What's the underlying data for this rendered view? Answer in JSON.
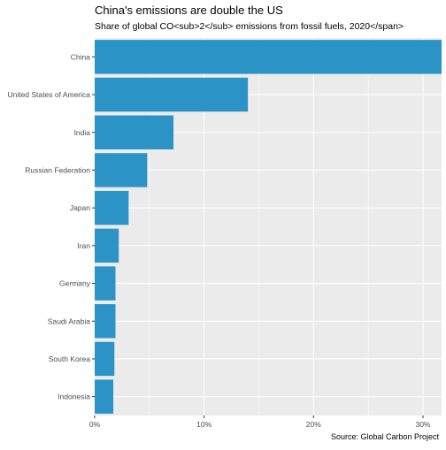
{
  "chart_data": {
    "type": "bar",
    "orientation": "horizontal",
    "title": "China's emissions are double the US",
    "subtitle": "Share of global CO<sub>2</sub> emissions from fossil fuels, 2020</span>",
    "caption": "Source: Global Carbon Project",
    "categories": [
      "China",
      "United States of America",
      "India",
      "Russian Federation",
      "Japan",
      "Iran",
      "Germany",
      "Saudi Arabia",
      "South Korea",
      "Indonesia"
    ],
    "values": [
      31.7,
      14.0,
      7.2,
      4.8,
      3.1,
      2.2,
      1.9,
      1.9,
      1.8,
      1.7
    ],
    "x_ticks": [
      0,
      10,
      20,
      30
    ],
    "x_tick_labels": [
      "0%",
      "10%",
      "20%",
      "30%"
    ],
    "xlim": [
      0,
      31.7
    ],
    "grid": true,
    "colors": {
      "bar": "#2b93c5",
      "panel": "#ebebeb",
      "grid": "#ffffff"
    }
  }
}
